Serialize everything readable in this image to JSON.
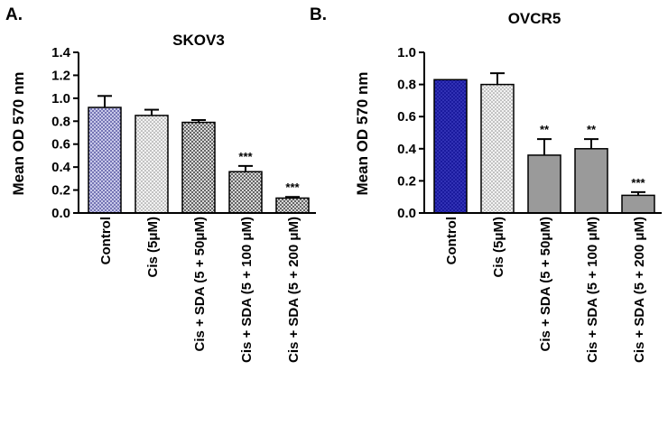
{
  "panels": {
    "a": {
      "letter": "A."
    },
    "b": {
      "letter": "B."
    }
  },
  "colors": {
    "ink": "#000000",
    "control_a": "#5a5aa0",
    "control_b": "#1a1a9e",
    "cis": "#cccccc",
    "combo_a": "#8a8a8a",
    "combo_b": "#9a9a9a"
  },
  "chart_data": [
    {
      "type": "bar",
      "panel": "A.",
      "title": "SKOV3",
      "ylabel": "Mean OD 570 nm",
      "xlabel": "",
      "ylim": [
        0,
        1.4
      ],
      "yticks": [
        "0.0",
        "0.2",
        "0.4",
        "0.6",
        "0.8",
        "1.0",
        "1.2",
        "1.4"
      ],
      "categories": [
        "Control",
        "Cis (5μM)",
        "Cis + SDA (5 + 50μM)",
        "Cis + SDA (5 + 100 μM)",
        "Cis + SDA (5 + 200 μM)"
      ],
      "values": [
        0.92,
        0.85,
        0.79,
        0.36,
        0.13
      ],
      "errors": [
        0.1,
        0.05,
        0.02,
        0.05,
        0.01
      ],
      "significance": [
        "",
        "",
        "",
        "***",
        "***"
      ]
    },
    {
      "type": "bar",
      "panel": "B.",
      "title": "OVCR5",
      "ylabel": "Mean OD 570 nm",
      "xlabel": "",
      "ylim": [
        0,
        1.0
      ],
      "yticks": [
        "0.0",
        "0.2",
        "0.4",
        "0.6",
        "0.8",
        "1.0"
      ],
      "categories": [
        "Control",
        "Cis (5μM)",
        "Cis + SDA (5 + 50μM)",
        "Cis + SDA (5 + 100 μM)",
        "Cis + SDA (5 + 200 μM)"
      ],
      "values": [
        0.83,
        0.8,
        0.36,
        0.4,
        0.11
      ],
      "errors": [
        0.0,
        0.07,
        0.1,
        0.06,
        0.02
      ],
      "significance": [
        "",
        "",
        "**",
        "**",
        "***"
      ]
    }
  ]
}
